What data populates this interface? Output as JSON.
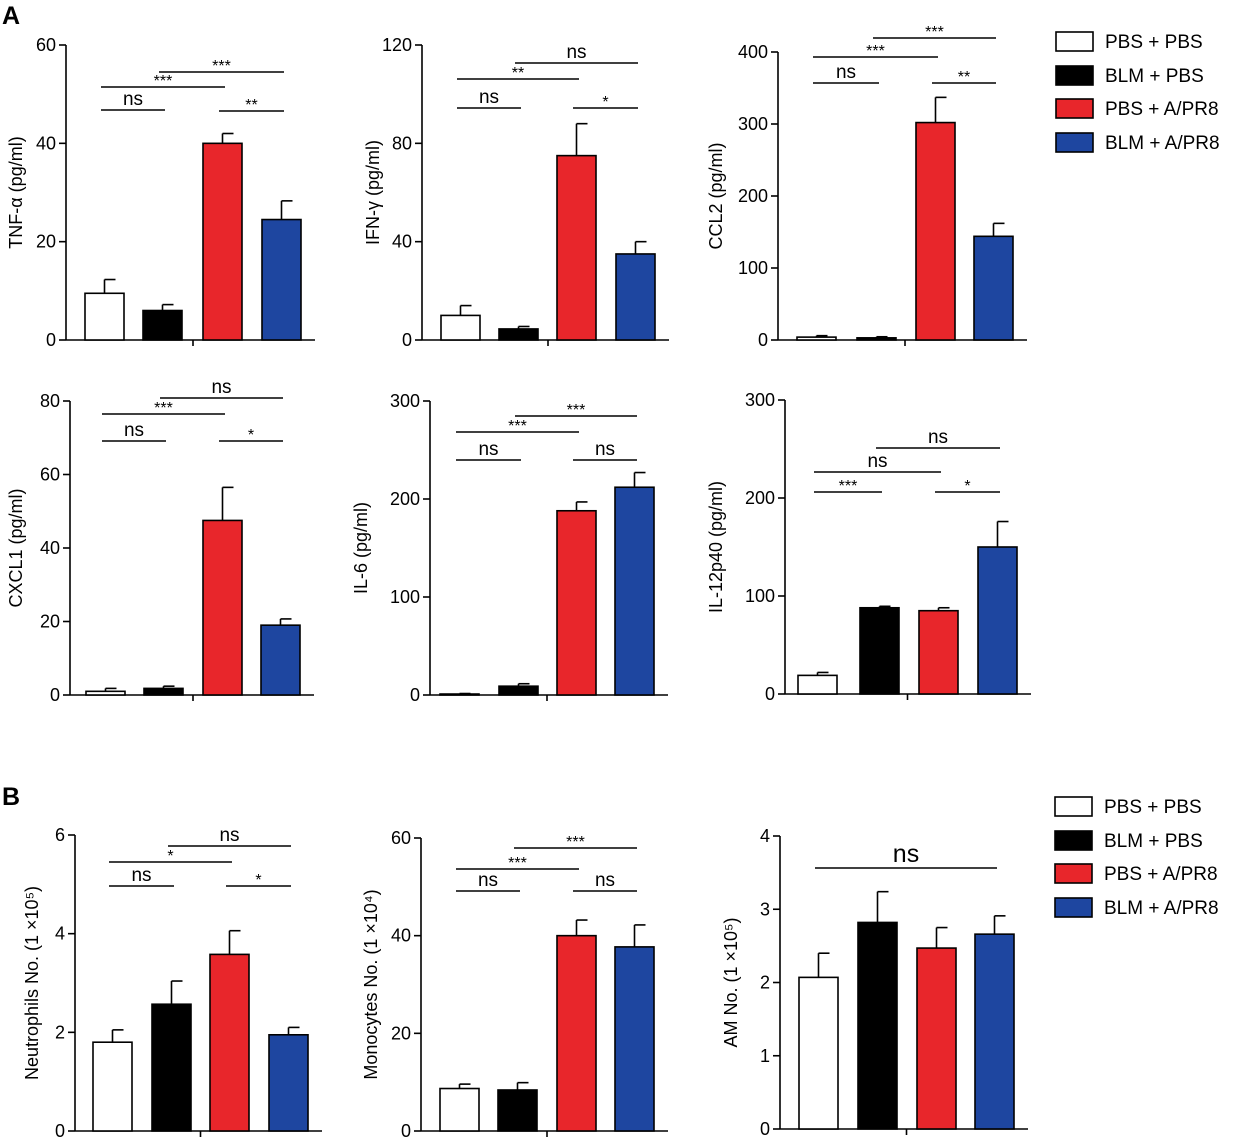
{
  "panel_labels": [
    "A",
    "B"
  ],
  "legends": [
    {
      "items": [
        {
          "label": "PBS + PBS",
          "color": "#ffffff"
        },
        {
          "label": "BLM + PBS",
          "color": "#000000"
        },
        {
          "label": "PBS + A/PR8",
          "color": "#e8262b"
        },
        {
          "label": "BLM + A/PR8",
          "color": "#1e46a0"
        }
      ]
    },
    {
      "items": [
        {
          "label": "PBS + PBS",
          "color": "#ffffff"
        },
        {
          "label": "BLM + PBS",
          "color": "#000000"
        },
        {
          "label": "PBS + A/PR8",
          "color": "#e8262b"
        },
        {
          "label": "BLM + A/PR8",
          "color": "#1e46a0"
        }
      ]
    }
  ],
  "chart_data": [
    {
      "type": "bar",
      "panel": "A",
      "ylabel": "TNF-α (pg/ml)",
      "ylim": [
        0,
        60
      ],
      "ticks": [
        0,
        20,
        40,
        60
      ],
      "categories": [
        "PBS + PBS",
        "BLM + PBS",
        "PBS + A/PR8",
        "BLM + A/PR8"
      ],
      "colors": [
        "#ffffff",
        "#000000",
        "#e8262b",
        "#1e46a0"
      ],
      "values": [
        9.5,
        6,
        40,
        24.5
      ],
      "errors": [
        2.8,
        1.2,
        2,
        3.8
      ],
      "annotations": [
        {
          "from": 1,
          "to": 2,
          "label": "ns"
        },
        {
          "from": 1,
          "to": 3,
          "label": "***"
        },
        {
          "from": 2,
          "to": 4,
          "label": "***"
        },
        {
          "from": 3,
          "to": 4,
          "label": "**"
        }
      ]
    },
    {
      "type": "bar",
      "panel": "A",
      "ylabel": "IFN-γ (pg/ml)",
      "ylim": [
        0,
        120
      ],
      "ticks": [
        0,
        40,
        80,
        120
      ],
      "categories": [
        "PBS + PBS",
        "BLM + PBS",
        "PBS + A/PR8",
        "BLM + A/PR8"
      ],
      "colors": [
        "#ffffff",
        "#000000",
        "#e8262b",
        "#1e46a0"
      ],
      "values": [
        10,
        4.5,
        75,
        35
      ],
      "errors": [
        4,
        1,
        13,
        5
      ],
      "annotations": [
        {
          "from": 1,
          "to": 2,
          "label": "ns"
        },
        {
          "from": 1,
          "to": 3,
          "label": "**"
        },
        {
          "from": 2,
          "to": 4,
          "label": "ns"
        },
        {
          "from": 3,
          "to": 4,
          "label": "*"
        }
      ]
    },
    {
      "type": "bar",
      "panel": "A",
      "ylabel": "CCL2 (pg/ml)",
      "ylim": [
        0,
        400
      ],
      "ticks": [
        0,
        100,
        200,
        300,
        400
      ],
      "categories": [
        "PBS + PBS",
        "BLM + PBS",
        "PBS + A/PR8",
        "BLM + A/PR8"
      ],
      "colors": [
        "#ffffff",
        "#000000",
        "#e8262b",
        "#1e46a0"
      ],
      "values": [
        4,
        3,
        302,
        144
      ],
      "errors": [
        2,
        1.5,
        35,
        18
      ],
      "annotations": [
        {
          "from": 1,
          "to": 2,
          "label": "ns"
        },
        {
          "from": 1,
          "to": 3,
          "label": "***"
        },
        {
          "from": 2,
          "to": 4,
          "label": "***"
        },
        {
          "from": 3,
          "to": 4,
          "label": "**"
        }
      ]
    },
    {
      "type": "bar",
      "panel": "A",
      "ylabel": "CXCL1 (pg/ml)",
      "ylim": [
        0,
        80
      ],
      "ticks": [
        0,
        20,
        40,
        60,
        80
      ],
      "categories": [
        "PBS + PBS",
        "BLM + PBS",
        "PBS + A/PR8",
        "BLM + A/PR8"
      ],
      "colors": [
        "#ffffff",
        "#000000",
        "#e8262b",
        "#1e46a0"
      ],
      "values": [
        1,
        1.8,
        47.5,
        19
      ],
      "errors": [
        0.8,
        0.6,
        9,
        1.7
      ],
      "annotations": [
        {
          "from": 1,
          "to": 2,
          "label": "ns"
        },
        {
          "from": 1,
          "to": 3,
          "label": "***"
        },
        {
          "from": 2,
          "to": 4,
          "label": "ns"
        },
        {
          "from": 3,
          "to": 4,
          "label": "*"
        }
      ]
    },
    {
      "type": "bar",
      "panel": "A",
      "ylabel": "IL-6 (pg/ml)",
      "ylim": [
        0,
        300
      ],
      "ticks": [
        0,
        100,
        200,
        300
      ],
      "categories": [
        "PBS + PBS",
        "BLM + PBS",
        "PBS + A/PR8",
        "BLM + A/PR8"
      ],
      "colors": [
        "#ffffff",
        "#000000",
        "#e8262b",
        "#1e46a0"
      ],
      "values": [
        1,
        9,
        188,
        212
      ],
      "errors": [
        0.5,
        2.5,
        9,
        15
      ],
      "annotations": [
        {
          "from": 1,
          "to": 2,
          "label": "ns"
        },
        {
          "from": 1,
          "to": 3,
          "label": "***"
        },
        {
          "from": 2,
          "to": 4,
          "label": "***"
        },
        {
          "from": 3,
          "to": 4,
          "label": "ns"
        }
      ]
    },
    {
      "type": "bar",
      "panel": "A",
      "ylabel": "IL-12p40  (pg/ml)",
      "ylim": [
        0,
        300
      ],
      "ticks": [
        0,
        100,
        200,
        300
      ],
      "categories": [
        "PBS + PBS",
        "BLM + PBS",
        "PBS + A/PR8",
        "BLM + A/PR8"
      ],
      "colors": [
        "#ffffff",
        "#000000",
        "#e8262b",
        "#1e46a0"
      ],
      "values": [
        19,
        88,
        85,
        150
      ],
      "errors": [
        3,
        1.5,
        3,
        26
      ],
      "annotations": [
        {
          "from": 1,
          "to": 2,
          "label": "***"
        },
        {
          "from": 1,
          "to": 3,
          "label": "ns"
        },
        {
          "from": 2,
          "to": 4,
          "label": "ns"
        },
        {
          "from": 3,
          "to": 4,
          "label": "*"
        }
      ]
    },
    {
      "type": "bar",
      "panel": "B",
      "ylabel": "Neutrophils No. (1 ×10⁵)",
      "ylim": [
        0,
        6
      ],
      "ticks": [
        0,
        2,
        4,
        6
      ],
      "categories": [
        "PBS + PBS",
        "BLM + PBS",
        "PBS + A/PR8",
        "BLM + A/PR8"
      ],
      "colors": [
        "#ffffff",
        "#000000",
        "#e8262b",
        "#1e46a0"
      ],
      "values": [
        1.8,
        2.57,
        3.58,
        1.95
      ],
      "errors": [
        0.25,
        0.47,
        0.48,
        0.15
      ],
      "annotations": [
        {
          "from": 1,
          "to": 2,
          "label": "ns"
        },
        {
          "from": 1,
          "to": 3,
          "label": "*"
        },
        {
          "from": 2,
          "to": 4,
          "label": "ns"
        },
        {
          "from": 3,
          "to": 4,
          "label": "*"
        }
      ]
    },
    {
      "type": "bar",
      "panel": "B",
      "ylabel": "Monocytes No. (1 ×10⁴)",
      "ylim": [
        0,
        60
      ],
      "ticks": [
        0,
        20,
        40,
        60
      ],
      "categories": [
        "PBS + PBS",
        "BLM + PBS",
        "PBS + A/PR8",
        "BLM + A/PR8"
      ],
      "colors": [
        "#ffffff",
        "#000000",
        "#e8262b",
        "#1e46a0"
      ],
      "values": [
        8.7,
        8.4,
        40,
        37.7
      ],
      "errors": [
        0.9,
        1.5,
        3.2,
        4.5
      ],
      "annotations": [
        {
          "from": 1,
          "to": 2,
          "label": "ns"
        },
        {
          "from": 1,
          "to": 3,
          "label": "***"
        },
        {
          "from": 2,
          "to": 4,
          "label": "***"
        },
        {
          "from": 3,
          "to": 4,
          "label": "ns"
        }
      ]
    },
    {
      "type": "bar",
      "panel": "B",
      "ylabel": "AM No. (1 ×10⁵)",
      "ylim": [
        0,
        4
      ],
      "ticks": [
        0,
        1,
        2,
        3,
        4
      ],
      "categories": [
        "PBS + PBS",
        "BLM + PBS",
        "PBS + A/PR8",
        "BLM + A/PR8"
      ],
      "colors": [
        "#ffffff",
        "#000000",
        "#e8262b",
        "#1e46a0"
      ],
      "values": [
        2.07,
        2.82,
        2.47,
        2.66
      ],
      "errors": [
        0.33,
        0.42,
        0.28,
        0.25
      ],
      "annotations": [
        {
          "from": 1,
          "to": 4,
          "label": "ns"
        }
      ]
    }
  ]
}
